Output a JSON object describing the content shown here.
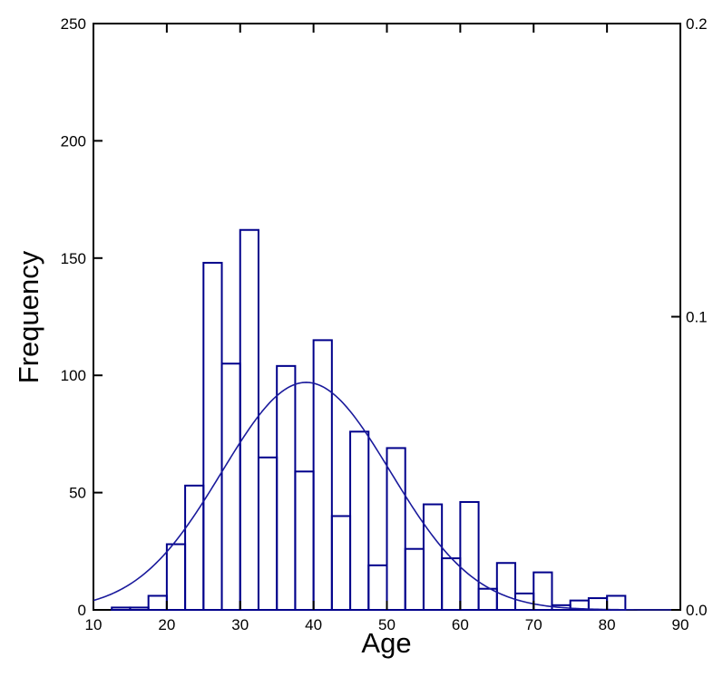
{
  "chart_data": {
    "type": "bar",
    "xlabel": "Age",
    "ylabel": "Frequency",
    "xlim": [
      10,
      90
    ],
    "ylim": [
      0,
      250
    ],
    "y2lim": [
      0,
      0.2
    ],
    "x_ticks": [
      10,
      20,
      30,
      40,
      50,
      60,
      70,
      80,
      90
    ],
    "x_tick_labels": [
      "10",
      "20",
      "30",
      "40",
      "50",
      "60",
      "70",
      "80",
      "90"
    ],
    "y_ticks": [
      0,
      50,
      100,
      150,
      200,
      250
    ],
    "y_tick_labels": [
      "0",
      "50",
      "100",
      "150",
      "200",
      "250"
    ],
    "y2_ticks": [
      0,
      0.1,
      0.2
    ],
    "y2_tick_labels": [
      "0.0",
      "0.1",
      "0.2"
    ],
    "bin_width": 2.5,
    "bin_edges": [
      12.5,
      15,
      17.5,
      20,
      22.5,
      25,
      27.5,
      30,
      32.5,
      35,
      37.5,
      40,
      42.5,
      45,
      47.5,
      50,
      52.5,
      55,
      57.5,
      60,
      62.5,
      65,
      67.5,
      70,
      72.5,
      75,
      77.5,
      80,
      82.5
    ],
    "values": [
      1,
      1,
      6,
      28,
      53,
      148,
      105,
      162,
      65,
      104,
      59,
      115,
      40,
      76,
      19,
      69,
      26,
      45,
      22,
      46,
      9,
      20,
      7,
      16,
      2,
      4,
      5,
      6
    ],
    "curve": {
      "type": "normal-density",
      "mean": 39,
      "sd": 11.5,
      "peak_frequency": 97
    },
    "grid": false,
    "legend": "none",
    "colors": {
      "bars": "#00008b",
      "curve": "#1a1a9c",
      "axes": "#000000"
    }
  }
}
